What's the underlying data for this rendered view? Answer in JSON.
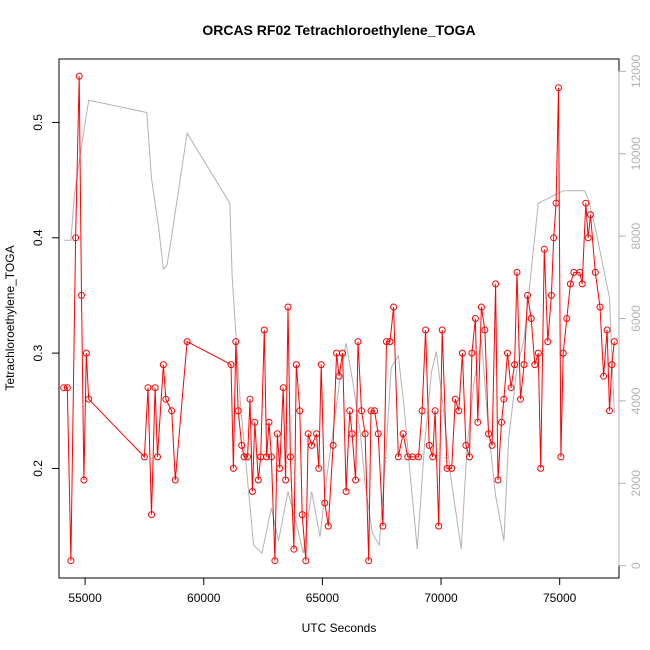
{
  "chart_data": {
    "type": "line",
    "title": "ORCAS RF02 Tetrachloroethylene_TOGA",
    "xlabel": "UTC Seconds",
    "ylabel": "Tetrachloroethylene_TOGA",
    "xlim": [
      53900,
      77500
    ],
    "ylim": [
      0.105,
      0.555
    ],
    "y2lim": [
      -300,
      12300
    ],
    "x_ticks": [
      55000,
      60000,
      65000,
      70000,
      75000
    ],
    "y_ticks": [
      0.2,
      0.3,
      0.4,
      0.5
    ],
    "y2_ticks": [
      0,
      2000,
      4000,
      6000,
      8000,
      10000,
      12000
    ],
    "colors": {
      "series": "#ff0000",
      "background": "#b3b3b3",
      "axis": "#000000"
    },
    "series": [
      {
        "color": "#ff0000",
        "style": "line+circle-markers",
        "points": [
          [
            54100,
            0.27
          ],
          [
            54250,
            0.27
          ],
          [
            54400,
            0.12
          ],
          [
            54600,
            0.4
          ],
          [
            54750,
            0.54
          ],
          [
            54850,
            0.35
          ],
          [
            54950,
            0.19
          ],
          [
            55050,
            0.3
          ],
          [
            55150,
            0.26
          ],
          [
            57500,
            0.21
          ],
          [
            57650,
            0.27
          ],
          [
            57800,
            0.16
          ],
          [
            57950,
            0.27
          ],
          [
            58050,
            0.21
          ],
          [
            58300,
            0.29
          ],
          [
            58400,
            0.26
          ],
          [
            58650,
            0.25
          ],
          [
            58800,
            0.19
          ],
          [
            59300,
            0.31
          ],
          [
            61150,
            0.29
          ],
          [
            61250,
            0.2
          ],
          [
            61350,
            0.31
          ],
          [
            61450,
            0.25
          ],
          [
            61600,
            0.22
          ],
          [
            61700,
            0.21
          ],
          [
            61850,
            0.21
          ],
          [
            61950,
            0.26
          ],
          [
            62050,
            0.18
          ],
          [
            62150,
            0.24
          ],
          [
            62300,
            0.19
          ],
          [
            62400,
            0.21
          ],
          [
            62550,
            0.32
          ],
          [
            62650,
            0.21
          ],
          [
            62750,
            0.24
          ],
          [
            62850,
            0.21
          ],
          [
            63000,
            0.12
          ],
          [
            63100,
            0.23
          ],
          [
            63200,
            0.2
          ],
          [
            63350,
            0.27
          ],
          [
            63450,
            0.19
          ],
          [
            63550,
            0.34
          ],
          [
            63650,
            0.21
          ],
          [
            63800,
            0.13
          ],
          [
            63900,
            0.29
          ],
          [
            64050,
            0.25
          ],
          [
            64150,
            0.16
          ],
          [
            64300,
            0.12
          ],
          [
            64400,
            0.23
          ],
          [
            64550,
            0.22
          ],
          [
            64750,
            0.23
          ],
          [
            64850,
            0.2
          ],
          [
            64950,
            0.29
          ],
          [
            65100,
            0.17
          ],
          [
            65250,
            0.15
          ],
          [
            65450,
            0.22
          ],
          [
            65600,
            0.3
          ],
          [
            65700,
            0.28
          ],
          [
            65850,
            0.3
          ],
          [
            66000,
            0.18
          ],
          [
            66150,
            0.25
          ],
          [
            66250,
            0.23
          ],
          [
            66400,
            0.19
          ],
          [
            66500,
            0.31
          ],
          [
            66650,
            0.25
          ],
          [
            66800,
            0.23
          ],
          [
            66950,
            0.12
          ],
          [
            67050,
            0.25
          ],
          [
            67200,
            0.25
          ],
          [
            67350,
            0.23
          ],
          [
            67550,
            0.15
          ],
          [
            67700,
            0.31
          ],
          [
            67850,
            0.31
          ],
          [
            68000,
            0.34
          ],
          [
            68200,
            0.21
          ],
          [
            68400,
            0.23
          ],
          [
            68600,
            0.21
          ],
          [
            68800,
            0.21
          ],
          [
            69050,
            0.21
          ],
          [
            69200,
            0.25
          ],
          [
            69350,
            0.32
          ],
          [
            69500,
            0.22
          ],
          [
            69650,
            0.21
          ],
          [
            69750,
            0.25
          ],
          [
            69900,
            0.15
          ],
          [
            70050,
            0.32
          ],
          [
            70250,
            0.2
          ],
          [
            70450,
            0.2
          ],
          [
            70600,
            0.26
          ],
          [
            70750,
            0.25
          ],
          [
            70900,
            0.3
          ],
          [
            71050,
            0.22
          ],
          [
            71200,
            0.21
          ],
          [
            71300,
            0.3
          ],
          [
            71450,
            0.33
          ],
          [
            71550,
            0.24
          ],
          [
            71700,
            0.34
          ],
          [
            71850,
            0.32
          ],
          [
            72000,
            0.23
          ],
          [
            72150,
            0.22
          ],
          [
            72300,
            0.36
          ],
          [
            72400,
            0.19
          ],
          [
            72550,
            0.24
          ],
          [
            72650,
            0.26
          ],
          [
            72800,
            0.3
          ],
          [
            72950,
            0.27
          ],
          [
            73100,
            0.29
          ],
          [
            73200,
            0.37
          ],
          [
            73350,
            0.26
          ],
          [
            73500,
            0.29
          ],
          [
            73650,
            0.35
          ],
          [
            73800,
            0.33
          ],
          [
            73950,
            0.29
          ],
          [
            74100,
            0.3
          ],
          [
            74200,
            0.2
          ],
          [
            74350,
            0.39
          ],
          [
            74500,
            0.31
          ],
          [
            74650,
            0.35
          ],
          [
            74750,
            0.4
          ],
          [
            74850,
            0.43
          ],
          [
            74950,
            0.53
          ],
          [
            75050,
            0.21
          ],
          [
            75150,
            0.3
          ],
          [
            75300,
            0.33
          ],
          [
            75450,
            0.36
          ],
          [
            75600,
            0.37
          ],
          [
            75850,
            0.37
          ],
          [
            75950,
            0.36
          ],
          [
            76100,
            0.43
          ],
          [
            76200,
            0.4
          ],
          [
            76300,
            0.42
          ],
          [
            76500,
            0.37
          ],
          [
            76700,
            0.34
          ],
          [
            76850,
            0.28
          ],
          [
            77000,
            0.32
          ],
          [
            77100,
            0.25
          ],
          [
            77200,
            0.29
          ],
          [
            77300,
            0.31
          ]
        ]
      },
      {
        "color": "#b3b3b3",
        "style": "line",
        "axis": "right",
        "points": [
          [
            54100,
            7900
          ],
          [
            54400,
            7900
          ],
          [
            54550,
            9000
          ],
          [
            54800,
            10000
          ],
          [
            55150,
            11300
          ],
          [
            57600,
            11000
          ],
          [
            57800,
            9400
          ],
          [
            58100,
            8200
          ],
          [
            58300,
            7200
          ],
          [
            58450,
            7300
          ],
          [
            58650,
            8000
          ],
          [
            59300,
            10500
          ],
          [
            61100,
            8800
          ],
          [
            61200,
            7000
          ],
          [
            61550,
            3900
          ],
          [
            62100,
            500
          ],
          [
            62450,
            300
          ],
          [
            62850,
            1400
          ],
          [
            63150,
            600
          ],
          [
            63550,
            1800
          ],
          [
            63950,
            900
          ],
          [
            64200,
            300
          ],
          [
            64550,
            1800
          ],
          [
            64900,
            700
          ],
          [
            65200,
            2200
          ],
          [
            65500,
            3500
          ],
          [
            65800,
            4800
          ],
          [
            66000,
            5400
          ],
          [
            66300,
            4400
          ],
          [
            66600,
            3200
          ],
          [
            66800,
            2000
          ],
          [
            67100,
            800
          ],
          [
            67400,
            500
          ],
          [
            67650,
            2500
          ],
          [
            67900,
            4800
          ],
          [
            68200,
            5100
          ],
          [
            68450,
            3800
          ],
          [
            68700,
            2200
          ],
          [
            69000,
            400
          ],
          [
            69300,
            2900
          ],
          [
            69600,
            4700
          ],
          [
            69800,
            5200
          ],
          [
            70100,
            3800
          ],
          [
            70400,
            2200
          ],
          [
            70850,
            400
          ],
          [
            71100,
            2900
          ],
          [
            71400,
            4500
          ],
          [
            71700,
            5500
          ],
          [
            72000,
            3300
          ],
          [
            72300,
            1700
          ],
          [
            72650,
            600
          ],
          [
            72850,
            3100
          ],
          [
            73200,
            4800
          ],
          [
            73500,
            5500
          ],
          [
            73700,
            6600
          ],
          [
            74100,
            8800
          ],
          [
            75150,
            9100
          ],
          [
            76050,
            9100
          ],
          [
            76200,
            8900
          ],
          [
            76500,
            8200
          ],
          [
            77100,
            6500
          ],
          [
            77300,
            3700
          ]
        ]
      }
    ]
  }
}
